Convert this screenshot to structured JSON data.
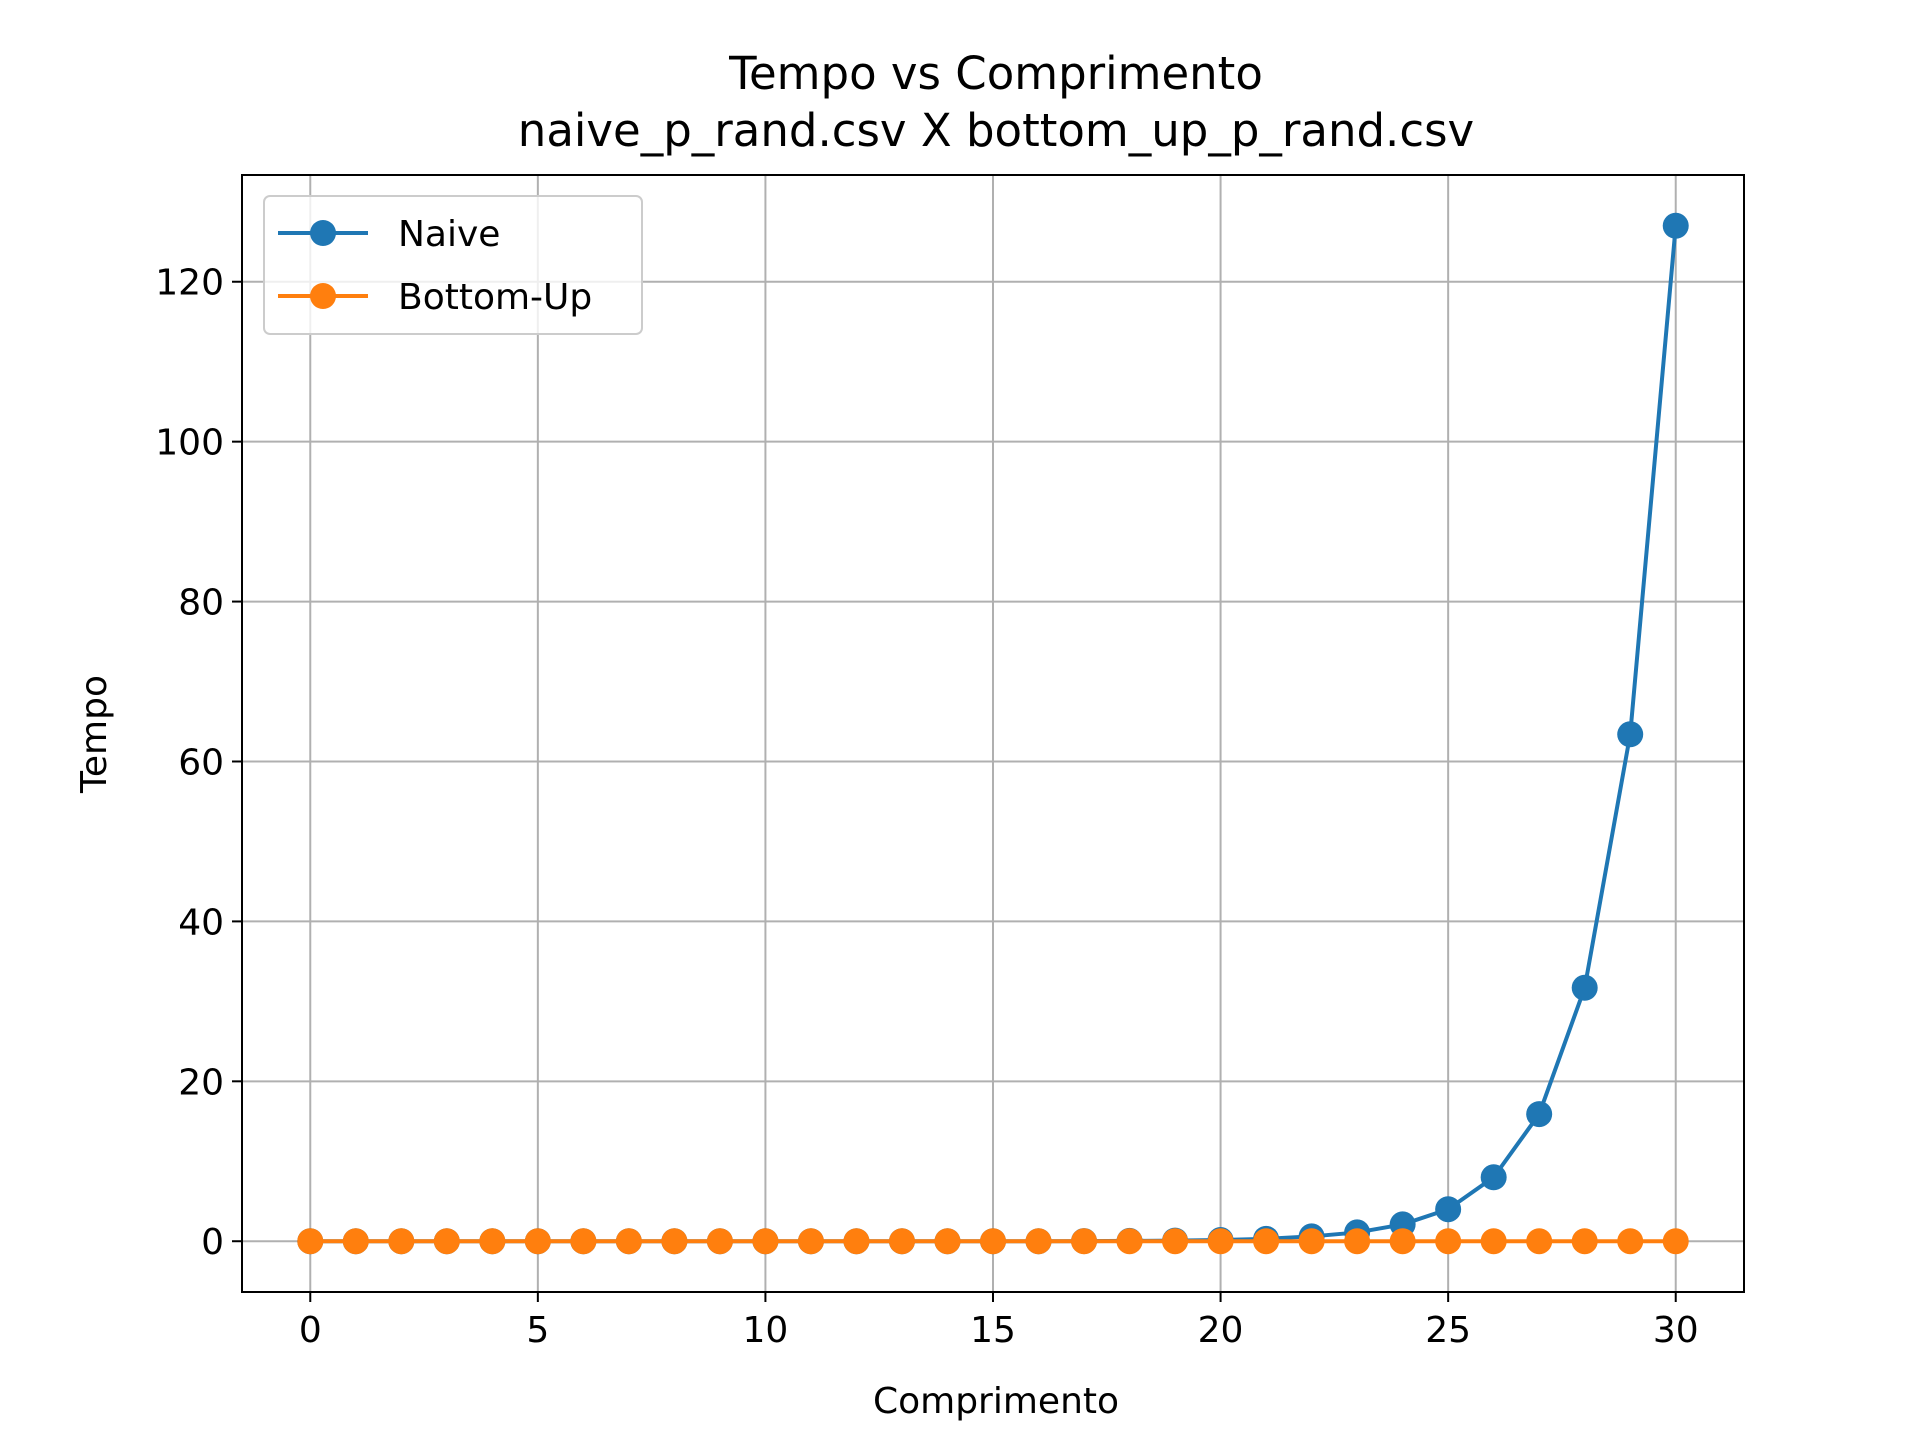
{
  "chart_data": {
    "type": "line",
    "title": "Tempo vs Comprimento",
    "subtitle": "naive_p_rand.csv X bottom_up_p_rand.csv",
    "xlabel": "Comprimento",
    "ylabel": "Tempo",
    "xlim": [
      -1.5,
      31.5
    ],
    "ylim": [
      -6.35,
      133.35
    ],
    "xticks": [
      0,
      5,
      10,
      15,
      20,
      25,
      30
    ],
    "yticks": [
      0,
      20,
      40,
      60,
      80,
      100,
      120
    ],
    "grid": true,
    "legend_position": "upper-left",
    "x": [
      0,
      1,
      2,
      3,
      4,
      5,
      6,
      7,
      8,
      9,
      10,
      11,
      12,
      13,
      14,
      15,
      16,
      17,
      18,
      19,
      20,
      21,
      22,
      23,
      24,
      25,
      26,
      27,
      28,
      29,
      30
    ],
    "series": [
      {
        "name": "Naive",
        "color": "#1f77b4",
        "marker": "circle",
        "values": [
          0,
          0,
          0,
          0,
          0,
          0,
          0,
          0,
          0,
          0,
          0,
          0,
          0,
          0,
          0,
          0,
          0,
          0.02,
          0.04,
          0.08,
          0.15,
          0.3,
          0.6,
          1.1,
          2.1,
          4.0,
          8.0,
          15.9,
          31.7,
          63.4,
          127.0
        ]
      },
      {
        "name": "Bottom-Up",
        "color": "#ff7f0e",
        "marker": "circle",
        "values": [
          0,
          0,
          0,
          0,
          0,
          0,
          0,
          0,
          0,
          0,
          0,
          0,
          0,
          0,
          0,
          0,
          0,
          0,
          0,
          0,
          0,
          0,
          0,
          0,
          0,
          0,
          0,
          0,
          0,
          0,
          0
        ]
      }
    ]
  }
}
